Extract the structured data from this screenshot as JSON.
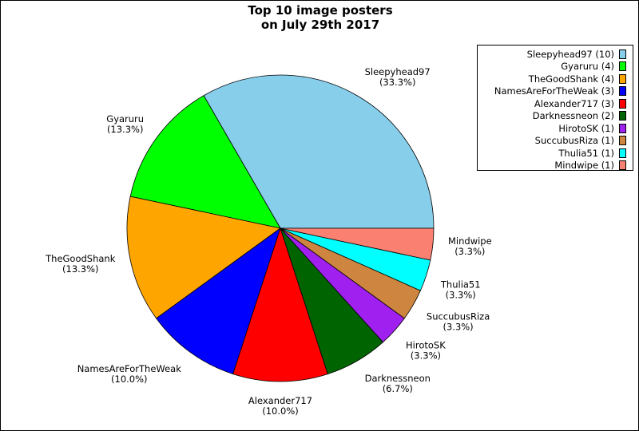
{
  "title_line1": "Top 10 image posters",
  "title_line2": "on July 29th 2017",
  "chart_data": {
    "type": "pie",
    "title": "Top 10 image posters on July 29th 2017",
    "start_angle_deg": 0,
    "direction": "counterclockwise",
    "legend_position": "top-right",
    "slices": [
      {
        "name": "Sleepyhead97",
        "value": 10,
        "pct": "33.3%",
        "legend": "Sleepyhead97 (10)",
        "color": "#87ceeb"
      },
      {
        "name": "Gyaruru",
        "value": 4,
        "pct": "13.3%",
        "legend": "Gyaruru (4)",
        "color": "#00ff00"
      },
      {
        "name": "TheGoodShank",
        "value": 4,
        "pct": "13.3%",
        "legend": "TheGoodShank (4)",
        "color": "#ffa500"
      },
      {
        "name": "NamesAreForTheWeak",
        "value": 3,
        "pct": "10.0%",
        "legend": "NamesAreForTheWeak (3)",
        "color": "#0000ff"
      },
      {
        "name": "Alexander717",
        "value": 3,
        "pct": "10.0%",
        "legend": "Alexander717 (3)",
        "color": "#ff0000"
      },
      {
        "name": "Darknessneon",
        "value": 2,
        "pct": "6.7%",
        "legend": "Darknessneon (2)",
        "color": "#006400"
      },
      {
        "name": "HirotoSK",
        "value": 1,
        "pct": "3.3%",
        "legend": "HirotoSK (1)",
        "color": "#a020f0"
      },
      {
        "name": "SuccubusRiza",
        "value": 1,
        "pct": "3.3%",
        "legend": "SuccubusRiza (1)",
        "color": "#cd853f"
      },
      {
        "name": "Thulia51",
        "value": 1,
        "pct": "3.3%",
        "legend": "Thulia51 (1)",
        "color": "#00ffff"
      },
      {
        "name": "Mindwipe",
        "value": 1,
        "pct": "3.3%",
        "legend": "Mindwipe (1)",
        "color": "#fa8072"
      }
    ]
  }
}
